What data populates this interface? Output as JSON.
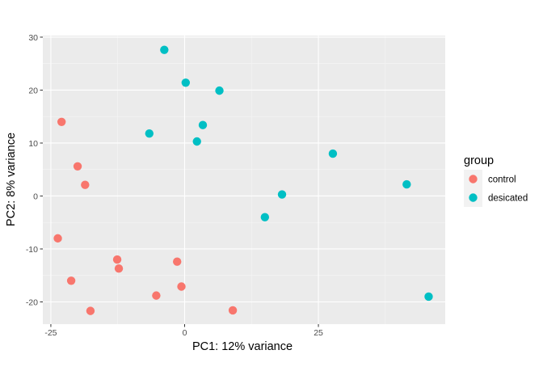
{
  "chart_data": {
    "type": "scatter",
    "title": "",
    "xlabel": "PC1: 12% variance",
    "ylabel": "PC2: 8% variance",
    "xlim": [
      -26.5,
      48.7
    ],
    "ylim": [
      -24.2,
      30.3
    ],
    "xticks": [
      -25,
      0,
      25
    ],
    "xtick_labels": [
      "-25",
      "0",
      "25"
    ],
    "yticks": [
      -20,
      -10,
      0,
      10,
      20,
      30
    ],
    "ytick_labels": [
      "-20",
      "-10",
      "0",
      "10",
      "20",
      "30"
    ],
    "grid": true,
    "legend": {
      "title": "group",
      "position": "right"
    },
    "series": [
      {
        "name": "control",
        "color": "#F8766D",
        "points": [
          [
            -23.0,
            14.0
          ],
          [
            -20.0,
            5.6
          ],
          [
            -18.6,
            2.1
          ],
          [
            -23.7,
            -8.0
          ],
          [
            -12.6,
            -12.0
          ],
          [
            -12.3,
            -13.7
          ],
          [
            -21.2,
            -16.0
          ],
          [
            -1.4,
            -12.4
          ],
          [
            -0.6,
            -17.1
          ],
          [
            -5.3,
            -18.8
          ],
          [
            -17.6,
            -21.7
          ],
          [
            9.0,
            -21.6
          ]
        ]
      },
      {
        "name": "desicated",
        "color": "#00BFC4",
        "points": [
          [
            -3.8,
            27.6
          ],
          [
            0.2,
            21.4
          ],
          [
            6.5,
            19.9
          ],
          [
            3.4,
            13.4
          ],
          [
            -6.6,
            11.8
          ],
          [
            2.3,
            10.3
          ],
          [
            27.7,
            8.0
          ],
          [
            18.2,
            0.3
          ],
          [
            15.0,
            -4.0
          ],
          [
            41.5,
            2.2
          ],
          [
            45.6,
            -19.0
          ]
        ]
      }
    ]
  }
}
